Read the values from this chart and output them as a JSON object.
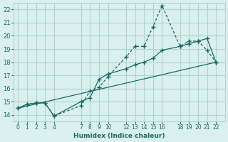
{
  "xlabel": "Humidex (Indice chaleur)",
  "background_color": "#d9f0ee",
  "grid_color": "#b0d4d0",
  "line_color": "#1a6b5e",
  "xlim": [
    -0.5,
    23
  ],
  "ylim": [
    13.5,
    22.5
  ],
  "xticks": [
    0,
    1,
    2,
    3,
    4,
    7,
    8,
    9,
    10,
    12,
    13,
    14,
    15,
    16,
    18,
    19,
    20,
    21,
    22
  ],
  "yticks": [
    14,
    15,
    16,
    17,
    18,
    19,
    20,
    21,
    22
  ],
  "line1_x": [
    0,
    1,
    2,
    3,
    4,
    7,
    8,
    9,
    10,
    12,
    13,
    14,
    15,
    16,
    18,
    19,
    20,
    21,
    22
  ],
  "line1_y": [
    14.5,
    14.8,
    14.9,
    14.9,
    13.9,
    14.7,
    15.8,
    16.1,
    16.9,
    18.4,
    19.2,
    19.2,
    20.7,
    22.3,
    19.2,
    19.6,
    19.6,
    18.9,
    18.0
  ],
  "line2_x": [
    0,
    1,
    2,
    3,
    4,
    7,
    8,
    9,
    10,
    12,
    13,
    14,
    15,
    16,
    18,
    19,
    20,
    21,
    22
  ],
  "line2_y": [
    14.5,
    14.8,
    14.9,
    14.9,
    13.9,
    15.0,
    15.3,
    16.7,
    17.1,
    17.5,
    17.8,
    18.0,
    18.3,
    18.9,
    19.2,
    19.4,
    19.6,
    19.8,
    18.0
  ],
  "line3_x": [
    0,
    22
  ],
  "line3_y": [
    14.5,
    18.0
  ]
}
